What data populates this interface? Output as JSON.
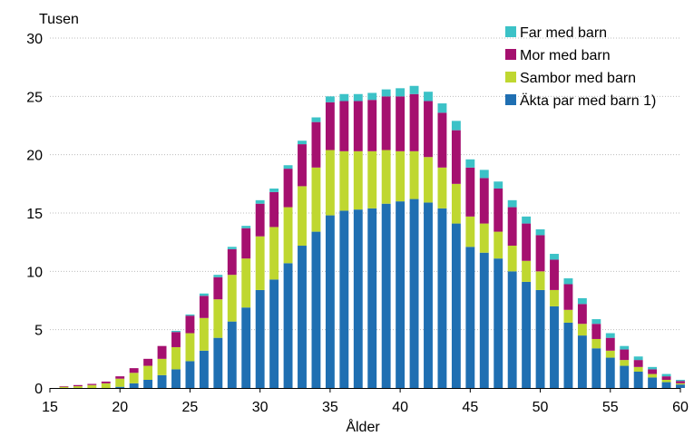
{
  "chart_data": {
    "type": "bar",
    "stacked": true,
    "title": "",
    "ylabel_top": "Tusen",
    "xlabel": "Ålder",
    "ylim": [
      0,
      30
    ],
    "xlim": [
      15,
      60
    ],
    "x_ticks": [
      "15",
      "20",
      "25",
      "30",
      "35",
      "40",
      "45",
      "50",
      "55",
      "60"
    ],
    "y_ticks": [
      "0",
      "5",
      "10",
      "15",
      "20",
      "25",
      "30"
    ],
    "grid": "horizontal-dotted",
    "legend_position": "top-right",
    "x": [
      16,
      17,
      18,
      19,
      20,
      21,
      22,
      23,
      24,
      25,
      26,
      27,
      28,
      29,
      30,
      31,
      32,
      33,
      34,
      35,
      36,
      37,
      38,
      39,
      40,
      41,
      42,
      43,
      44,
      45,
      46,
      47,
      48,
      49,
      50,
      51,
      52,
      53,
      54,
      55,
      56,
      57,
      58,
      59,
      60
    ],
    "series": [
      {
        "name": "Äkta par med barn 1)",
        "color": "#1f6fb2",
        "values": [
          0,
          0,
          0,
          0,
          0.1,
          0.4,
          0.7,
          1.1,
          1.6,
          2.3,
          3.2,
          4.3,
          5.7,
          6.9,
          8.4,
          9.3,
          10.7,
          12.2,
          13.4,
          14.8,
          15.2,
          15.3,
          15.4,
          15.8,
          16,
          16.2,
          15.9,
          15.4,
          14.1,
          12.1,
          11.6,
          11.1,
          10,
          9.1,
          8.4,
          7,
          5.6,
          4.5,
          3.4,
          2.6,
          1.9,
          1.4,
          0.9,
          0.5,
          0.3
        ]
      },
      {
        "name": "Sambor med barn",
        "color": "#bfd730",
        "values": [
          0.1,
          0.15,
          0.25,
          0.4,
          0.7,
          0.9,
          1.2,
          1.4,
          1.9,
          2.4,
          2.8,
          3.3,
          4,
          4.2,
          4.6,
          4.5,
          4.8,
          5.1,
          5.5,
          5.6,
          5.1,
          5,
          4.9,
          4.6,
          4.3,
          4.1,
          3.9,
          3.5,
          3.4,
          2.6,
          2.5,
          2.3,
          2.2,
          1.8,
          1.6,
          1.4,
          1.1,
          1,
          0.8,
          0.6,
          0.5,
          0.4,
          0.3,
          0.2,
          0.1
        ]
      },
      {
        "name": "Mor med barn",
        "color": "#a5106f",
        "values": [
          0.05,
          0.1,
          0.1,
          0.15,
          0.2,
          0.4,
          0.6,
          1.1,
          1.3,
          1.5,
          1.9,
          1.9,
          2.2,
          2.6,
          2.8,
          3,
          3.3,
          3.6,
          3.9,
          4.1,
          4.3,
          4.3,
          4.4,
          4.6,
          4.7,
          4.9,
          4.8,
          4.7,
          4.6,
          4.2,
          3.9,
          3.7,
          3.3,
          3.2,
          3.1,
          2.6,
          2.2,
          1.7,
          1.3,
          1.1,
          0.9,
          0.6,
          0.4,
          0.3,
          0.2
        ]
      },
      {
        "name": "Far med barn",
        "color": "#3cc2c7",
        "values": [
          0,
          0,
          0,
          0,
          0,
          0,
          0,
          0,
          0.1,
          0.1,
          0.2,
          0.2,
          0.2,
          0.2,
          0.3,
          0.3,
          0.3,
          0.3,
          0.4,
          0.5,
          0.6,
          0.6,
          0.6,
          0.6,
          0.7,
          0.7,
          0.8,
          0.8,
          0.8,
          0.7,
          0.7,
          0.6,
          0.6,
          0.6,
          0.5,
          0.5,
          0.5,
          0.5,
          0.4,
          0.4,
          0.3,
          0.3,
          0.2,
          0.2,
          0.1
        ]
      }
    ],
    "legend_order": [
      "Far med barn",
      "Mor med barn",
      "Sambor med barn",
      "Äkta par med barn 1)"
    ]
  }
}
